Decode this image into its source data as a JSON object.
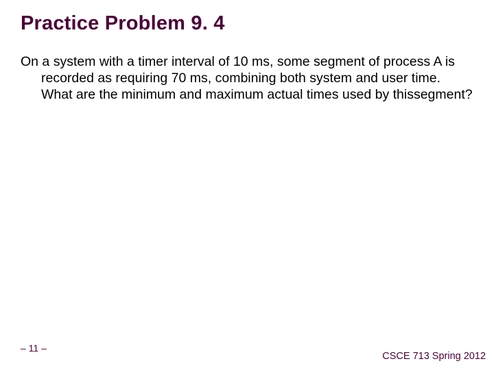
{
  "title": "Practice Problem 9. 4",
  "body": "On a system with a timer interval of 10 ms, some segment of process A is recorded as requiring 70 ms, combining both system and user time. What are the minimum and maximum actual times used by thissegment?",
  "footer": {
    "page": "– 11 –",
    "course": "CSCE 713 Spring 2012"
  },
  "colors": {
    "title": "#4d0039",
    "body": "#000000",
    "footer": "#4d0039",
    "background": "#ffffff"
  },
  "typography": {
    "title_fontsize": 29,
    "title_weight": "bold",
    "body_fontsize": 19.5,
    "footer_fontsize": 14,
    "font_family": "Arial"
  }
}
